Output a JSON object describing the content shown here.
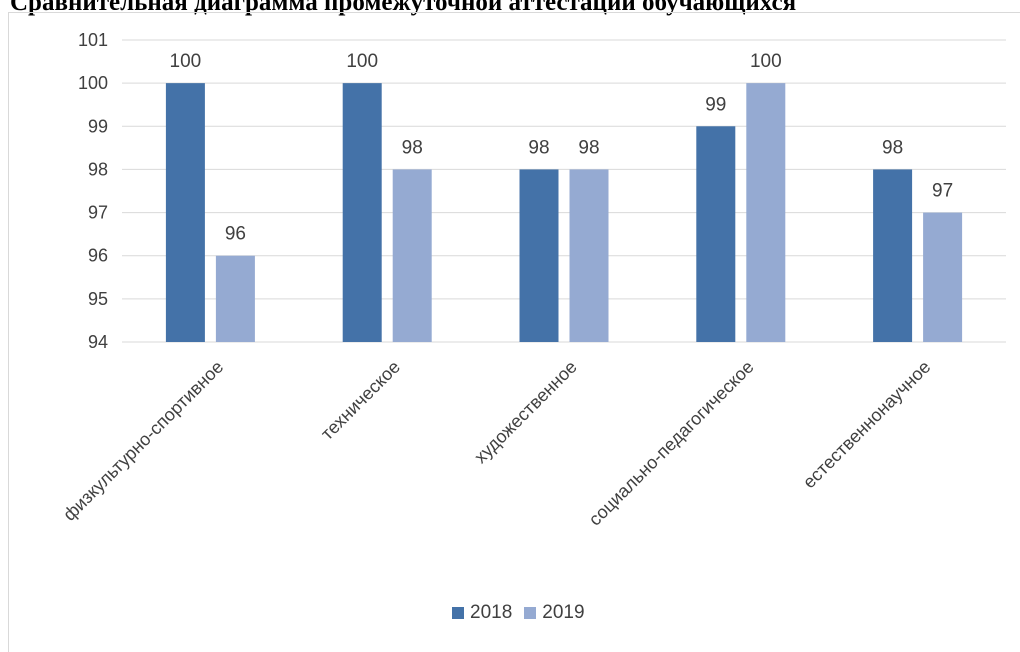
{
  "page": {
    "title": "Сравнительная диаграмма промежуточной аттестации обучающихся"
  },
  "chart_data": {
    "type": "bar",
    "categories": [
      "физкультурно-спортивное",
      "техническое",
      "художественное",
      "социально-педагогическое",
      "естественнонаучное"
    ],
    "series": [
      {
        "name": "2018",
        "values": [
          100,
          100,
          98,
          99,
          98
        ],
        "color": "#4472a8"
      },
      {
        "name": "2019",
        "values": [
          96,
          98,
          98,
          100,
          97
        ],
        "color": "#95aad2"
      }
    ],
    "ylim": [
      94,
      101
    ],
    "yticks": [
      "94",
      "95",
      "96",
      "97",
      "98",
      "99",
      "100",
      "101"
    ],
    "grid": true,
    "legend_position": "bottom",
    "title": "",
    "xlabel": "",
    "ylabel": ""
  }
}
